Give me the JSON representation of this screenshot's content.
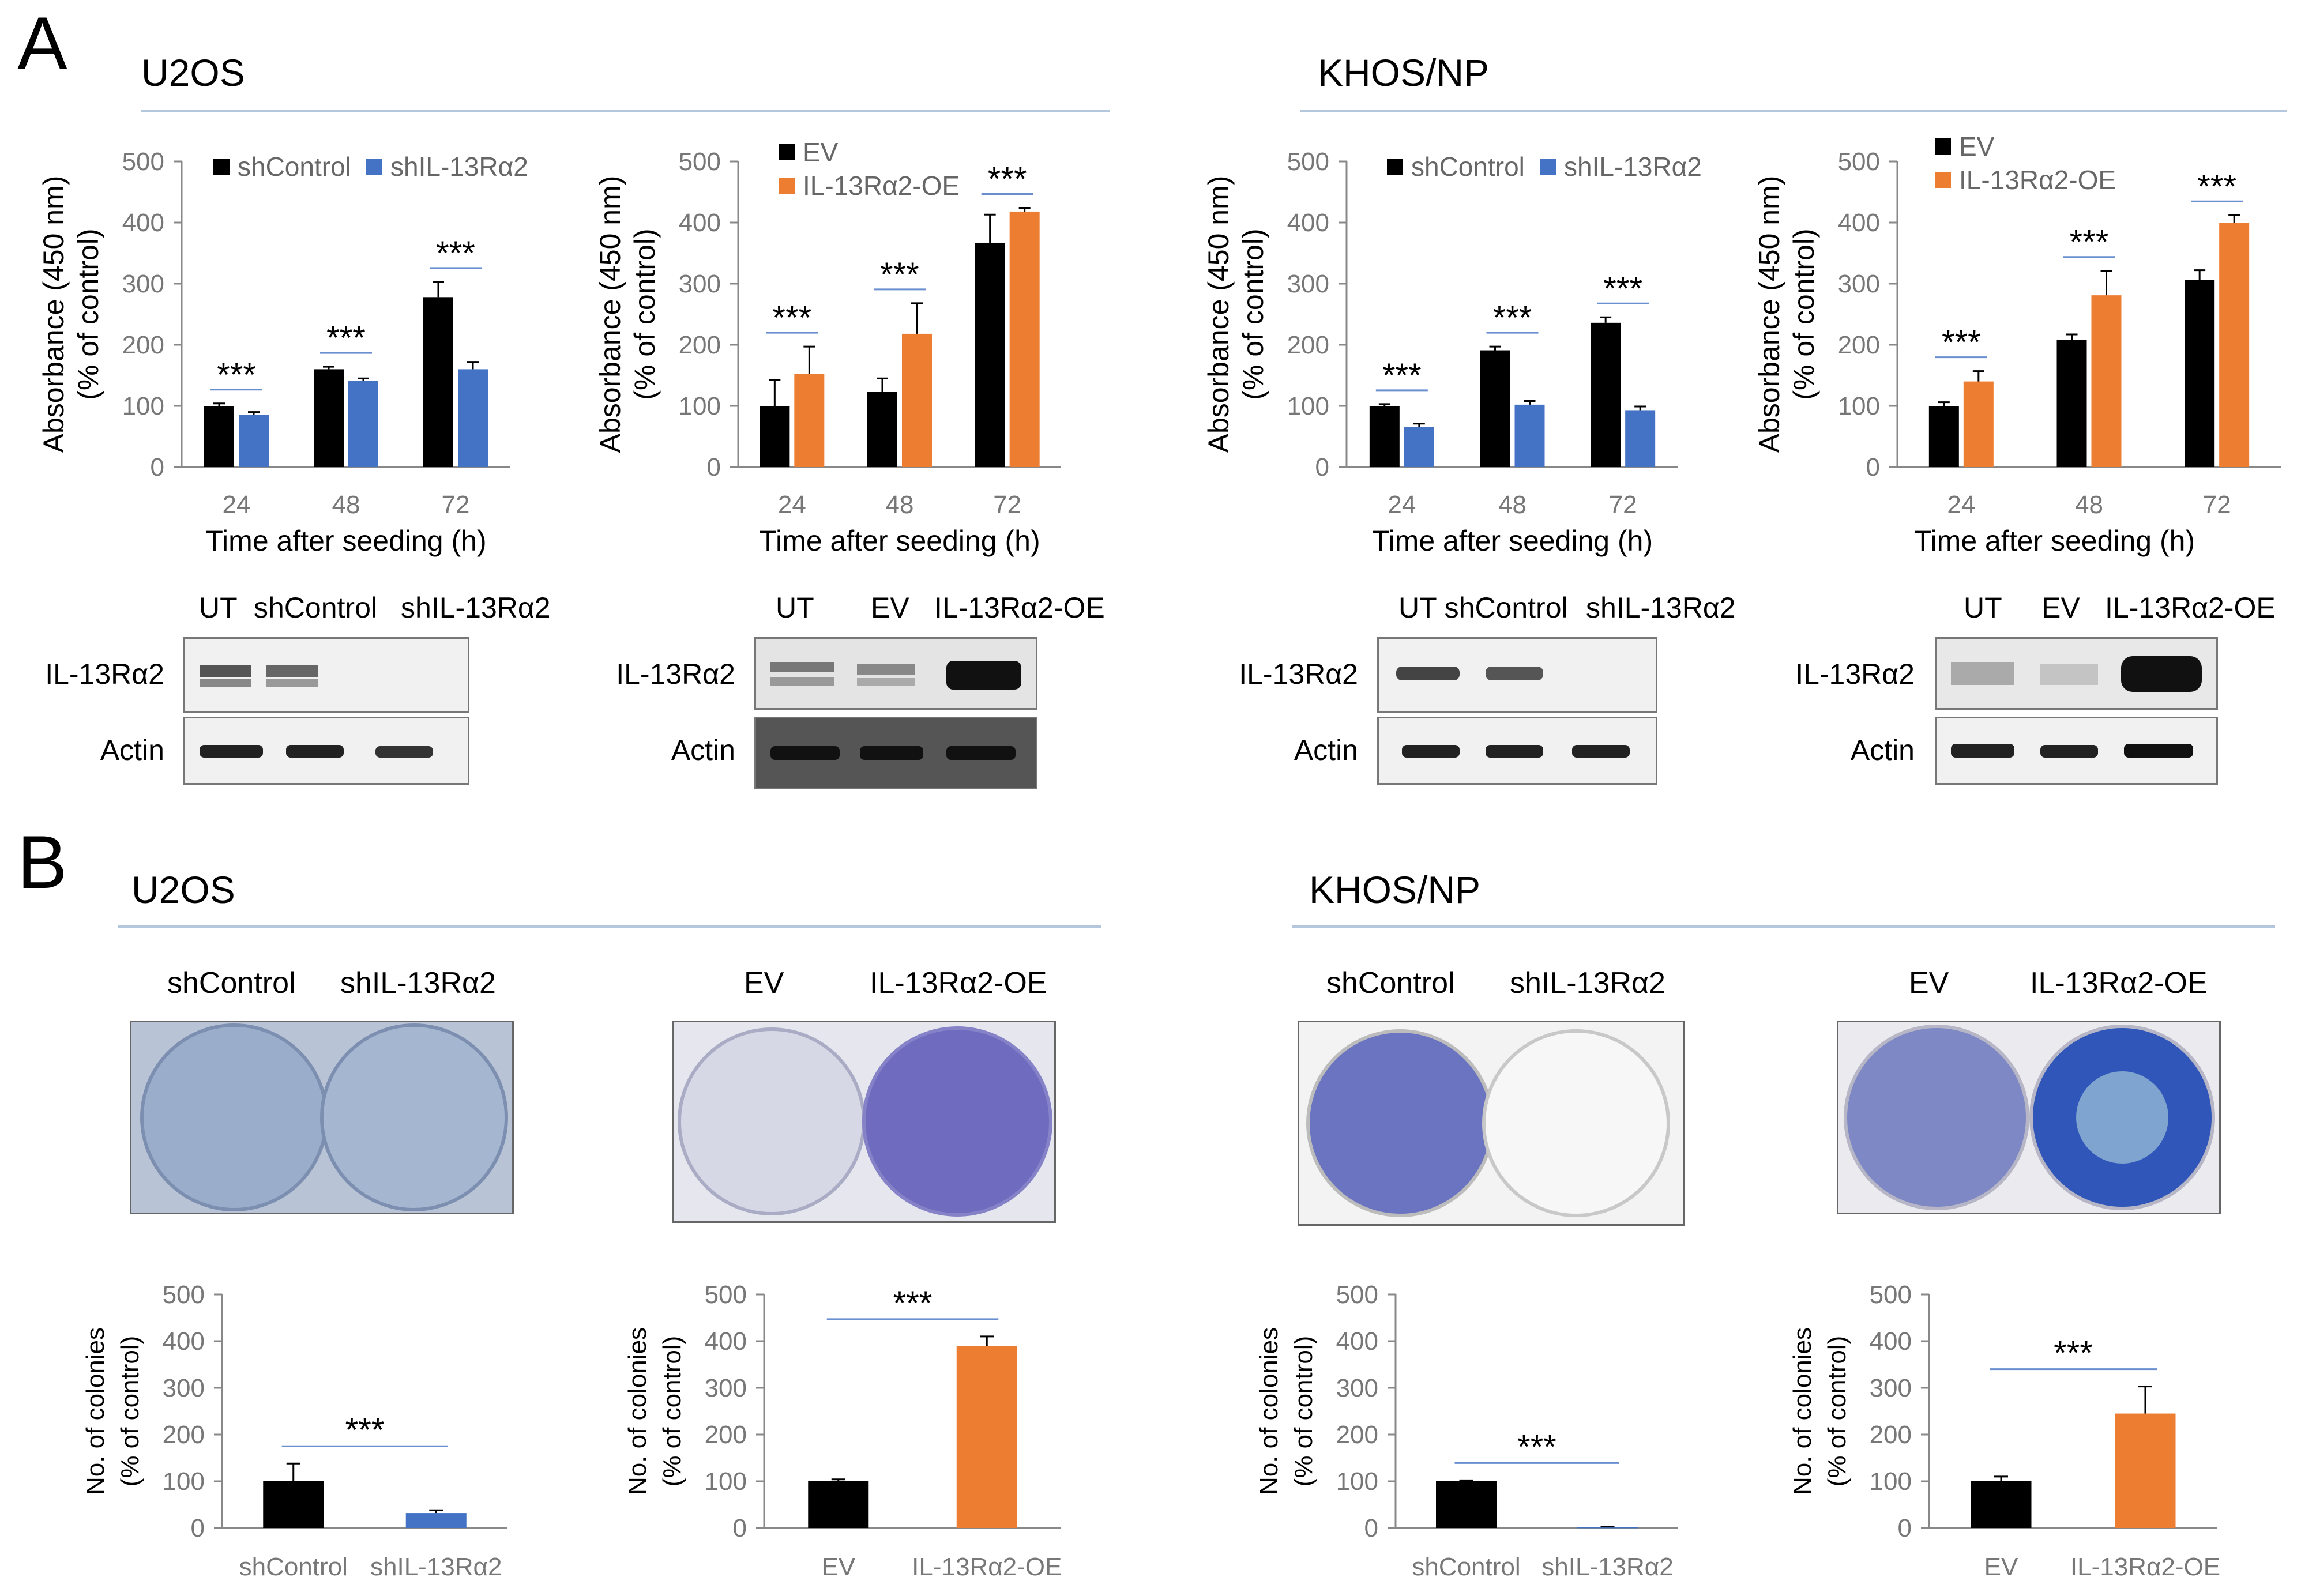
{
  "panels": {
    "A": {
      "letter": "A",
      "cells": [
        "U2OS",
        "KHOS/NP"
      ]
    },
    "B": {
      "letter": "B",
      "cells": [
        "U2OS",
        "KHOS/NP"
      ]
    }
  },
  "proliferation": {
    "ylabel_line1": "Absorbance (450 nm)",
    "ylabel_line2": "(% of control)",
    "xlabel": "Time after seeding (h)",
    "yticks": [
      "0",
      "100",
      "200",
      "300",
      "400",
      "500"
    ],
    "xticks": [
      "24",
      "48",
      "72"
    ],
    "sig": "***"
  },
  "western": [
    {
      "lanes": [
        "UT",
        "shControl",
        "shIL-13Rα2"
      ],
      "rows": [
        "IL-13Rα2",
        "Actin"
      ]
    },
    {
      "lanes": [
        "UT",
        "EV",
        "IL-13Rα2-OE"
      ],
      "rows": [
        "IL-13Rα2",
        "Actin"
      ]
    },
    {
      "lanes": [
        "UT shControl",
        "shIL-13Rα2"
      ],
      "rows": [
        "IL-13Rα2",
        "Actin"
      ]
    },
    {
      "lanes": [
        "UT",
        "EV",
        "IL-13Rα2-OE"
      ],
      "rows": [
        "IL-13Rα2",
        "Actin"
      ]
    }
  ],
  "plates": [
    {
      "labels": [
        "shControl",
        "shIL-13Rα2"
      ]
    },
    {
      "labels": [
        "EV",
        "IL-13Rα2-OE"
      ]
    },
    {
      "labels": [
        "shControl",
        "shIL-13Rα2"
      ]
    },
    {
      "labels": [
        "EV",
        "IL-13Rα2-OE"
      ]
    }
  ],
  "colonies": {
    "ylabel_line1": "No. of colonies",
    "ylabel_line2": "(% of control)",
    "yticks": [
      "0",
      "100",
      "200",
      "300",
      "400",
      "500"
    ],
    "sig": "***"
  },
  "colors": {
    "control": "#000000",
    "knockdown": "#4472c4",
    "overexpression": "#ed7d31",
    "rule": "#b4c7dc"
  },
  "chart_data": [
    {
      "type": "bar",
      "id": "A1",
      "categories": [
        "24",
        "48",
        "72"
      ],
      "ylim": [
        0,
        500
      ],
      "series": [
        {
          "name": "shControl",
          "values": [
            100,
            160,
            278
          ],
          "err": [
            4,
            4,
            25
          ]
        },
        {
          "name": "shIL-13Rα2",
          "values": [
            85,
            141,
            160
          ],
          "err": [
            5,
            4,
            12
          ]
        }
      ],
      "sig": [
        "***",
        "***",
        "***"
      ],
      "legend": "top-right"
    },
    {
      "type": "bar",
      "id": "A2",
      "categories": [
        "24",
        "48",
        "72"
      ],
      "ylim": [
        0,
        500
      ],
      "series": [
        {
          "name": "EV",
          "values": [
            100,
            123,
            367
          ],
          "err": [
            42,
            22,
            46
          ]
        },
        {
          "name": "IL-13Rα2-OE",
          "values": [
            152,
            218,
            418
          ],
          "err": [
            45,
            50,
            6
          ]
        }
      ],
      "sig": [
        "***",
        "***",
        "***"
      ],
      "legend": "top-left"
    },
    {
      "type": "bar",
      "id": "A3",
      "categories": [
        "24",
        "48",
        "72"
      ],
      "ylim": [
        0,
        500
      ],
      "series": [
        {
          "name": "shControl",
          "values": [
            100,
            191,
            236
          ],
          "err": [
            3,
            6,
            9
          ]
        },
        {
          "name": "shIL-13Rα2",
          "values": [
            66,
            102,
            93
          ],
          "err": [
            5,
            6,
            6
          ]
        }
      ],
      "sig": [
        "***",
        "***",
        "***"
      ],
      "legend": "top-right"
    },
    {
      "type": "bar",
      "id": "A4",
      "categories": [
        "24",
        "48",
        "72"
      ],
      "ylim": [
        0,
        500
      ],
      "series": [
        {
          "name": "EV",
          "values": [
            100,
            208,
            306
          ],
          "err": [
            6,
            9,
            16
          ]
        },
        {
          "name": "IL-13Rα2-OE",
          "values": [
            140,
            281,
            400
          ],
          "err": [
            17,
            40,
            12
          ]
        }
      ],
      "sig": [
        "***",
        "***",
        "***"
      ],
      "legend": "top-left"
    },
    {
      "type": "bar",
      "id": "B1",
      "categories": [
        "shControl",
        "shIL-13Rα2"
      ],
      "ylim": [
        0,
        500
      ],
      "values": [
        100,
        32
      ],
      "err": [
        38,
        6
      ],
      "sig": "***"
    },
    {
      "type": "bar",
      "id": "B2",
      "categories": [
        "EV",
        "IL-13Rα2-OE"
      ],
      "ylim": [
        0,
        500
      ],
      "values": [
        100,
        390
      ],
      "err": [
        4,
        20
      ],
      "sig": "***"
    },
    {
      "type": "bar",
      "id": "B3",
      "categories": [
        "shControl",
        "shIL-13Rα2"
      ],
      "ylim": [
        0,
        500
      ],
      "values": [
        100,
        2
      ],
      "err": [
        2,
        1
      ],
      "sig": "***"
    },
    {
      "type": "bar",
      "id": "B4",
      "categories": [
        "EV",
        "IL-13Rα2-OE"
      ],
      "ylim": [
        0,
        500
      ],
      "values": [
        100,
        245
      ],
      "err": [
        10,
        58
      ],
      "sig": "***"
    }
  ]
}
